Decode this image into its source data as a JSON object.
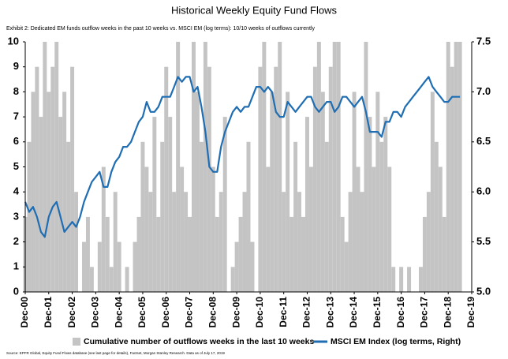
{
  "chart_data": {
    "type": "bar-line",
    "title": "Historical Weekly Equity Fund Flows",
    "subtitle": "Exhibit 2: Dedicated EM funds outflow weeks in the past 10 weeks vs. MSCI EM (log terms): 10/10 weeks of outflows currently",
    "source": "Source: EPFR Global, Equity Fund Flows database (see last page for details), Factset, Morgan Stanley Research. Data as of July 17, 2019",
    "categories": [
      "Dec-00",
      null,
      null,
      null,
      null,
      null,
      "Dec-01",
      null,
      null,
      null,
      null,
      null,
      "Dec-02",
      null,
      null,
      null,
      null,
      null,
      "Dec-03",
      null,
      null,
      null,
      null,
      null,
      "Dec-04",
      null,
      null,
      null,
      null,
      null,
      "Dec-05",
      null,
      null,
      null,
      null,
      null,
      "Dec-06",
      null,
      null,
      null,
      null,
      null,
      "Dec-07",
      null,
      null,
      null,
      null,
      null,
      "Dec-08",
      null,
      null,
      null,
      null,
      null,
      "Dec-09",
      null,
      null,
      null,
      null,
      null,
      "Dec-10",
      null,
      null,
      null,
      null,
      null,
      "Dec-11",
      null,
      null,
      null,
      null,
      null,
      "Dec-12",
      null,
      null,
      null,
      null,
      null,
      "Dec-13",
      null,
      null,
      null,
      null,
      null,
      "Dec-14",
      null,
      null,
      null,
      null,
      null,
      "Dec-15",
      null,
      null,
      null,
      null,
      null,
      "Dec-16",
      null,
      null,
      null,
      null,
      null,
      "Dec-17",
      null,
      null,
      null,
      null,
      null,
      "Dec-18",
      null,
      null,
      null,
      null,
      null,
      "Dec-19"
    ],
    "series": [
      {
        "name": "Cumulative number of outflows weeks in the last 10 weeks",
        "type": "bar",
        "color": "#c4c4c4",
        "values": [
          3,
          6,
          8,
          9,
          7,
          10,
          8,
          9,
          10,
          7,
          8,
          6,
          9,
          4,
          0,
          2,
          3,
          1,
          0,
          2,
          5,
          3,
          1,
          4,
          2,
          0,
          1,
          0,
          2,
          3,
          6,
          5,
          4,
          7,
          3,
          6,
          9,
          7,
          4,
          10,
          5,
          4,
          3,
          10,
          8,
          6,
          10,
          9,
          5,
          3,
          4,
          7,
          0,
          1,
          2,
          3,
          4,
          6,
          2,
          0,
          9,
          10,
          5,
          8,
          9,
          10,
          4,
          8,
          3,
          6,
          4,
          3,
          7,
          5,
          9,
          10,
          8,
          6,
          9,
          10,
          10,
          3,
          2,
          4,
          8,
          5,
          4,
          10,
          7,
          5,
          8,
          6,
          7,
          5,
          1,
          0,
          1,
          0,
          1,
          0,
          0,
          1,
          3,
          4,
          8,
          6,
          5,
          3,
          10,
          9,
          10,
          10,
          null,
          null,
          null
        ]
      },
      {
        "name": "MSCI EM Index (log terms, Right)",
        "type": "line",
        "axis": "y2",
        "color": "#1f6db3",
        "values": [
          5.9,
          5.8,
          5.85,
          5.75,
          5.6,
          5.55,
          5.75,
          5.85,
          5.9,
          5.75,
          5.6,
          5.65,
          5.7,
          5.65,
          5.75,
          5.9,
          6.0,
          6.1,
          6.15,
          6.2,
          6.05,
          6.05,
          6.2,
          6.3,
          6.35,
          6.45,
          6.45,
          6.5,
          6.6,
          6.7,
          6.75,
          6.9,
          6.8,
          6.8,
          6.85,
          6.95,
          6.95,
          6.95,
          7.05,
          7.15,
          7.1,
          7.15,
          7.15,
          7.0,
          7.05,
          6.85,
          6.6,
          6.25,
          6.2,
          6.2,
          6.45,
          6.6,
          6.7,
          6.8,
          6.85,
          6.8,
          6.85,
          6.85,
          6.95,
          7.05,
          7.05,
          7.0,
          7.05,
          7.0,
          6.8,
          6.75,
          6.75,
          6.9,
          6.85,
          6.8,
          6.85,
          6.9,
          6.95,
          6.95,
          6.85,
          6.8,
          6.85,
          6.9,
          6.9,
          6.8,
          6.85,
          6.95,
          6.95,
          6.9,
          6.85,
          6.9,
          6.95,
          6.8,
          6.6,
          6.6,
          6.6,
          6.55,
          6.7,
          6.7,
          6.8,
          6.8,
          6.75,
          6.85,
          6.9,
          6.95,
          7.0,
          7.05,
          7.1,
          7.15,
          7.05,
          7.0,
          6.95,
          6.9,
          6.9,
          6.95,
          6.95,
          6.95,
          null,
          null,
          null
        ]
      }
    ],
    "ylim": [
      0,
      10
    ],
    "yticks": [
      0,
      1,
      2,
      3,
      4,
      5,
      6,
      7,
      8,
      9,
      10
    ],
    "y2lim": [
      5,
      7.5
    ],
    "y2ticks": [
      {
        "value": 5,
        "label": "5.0"
      },
      5.5,
      {
        "value": 6,
        "label": "6.0"
      },
      6.5,
      {
        "value": 7,
        "label": "7.0"
      },
      7.5
    ],
    "grid": false,
    "legend": "bottom"
  }
}
